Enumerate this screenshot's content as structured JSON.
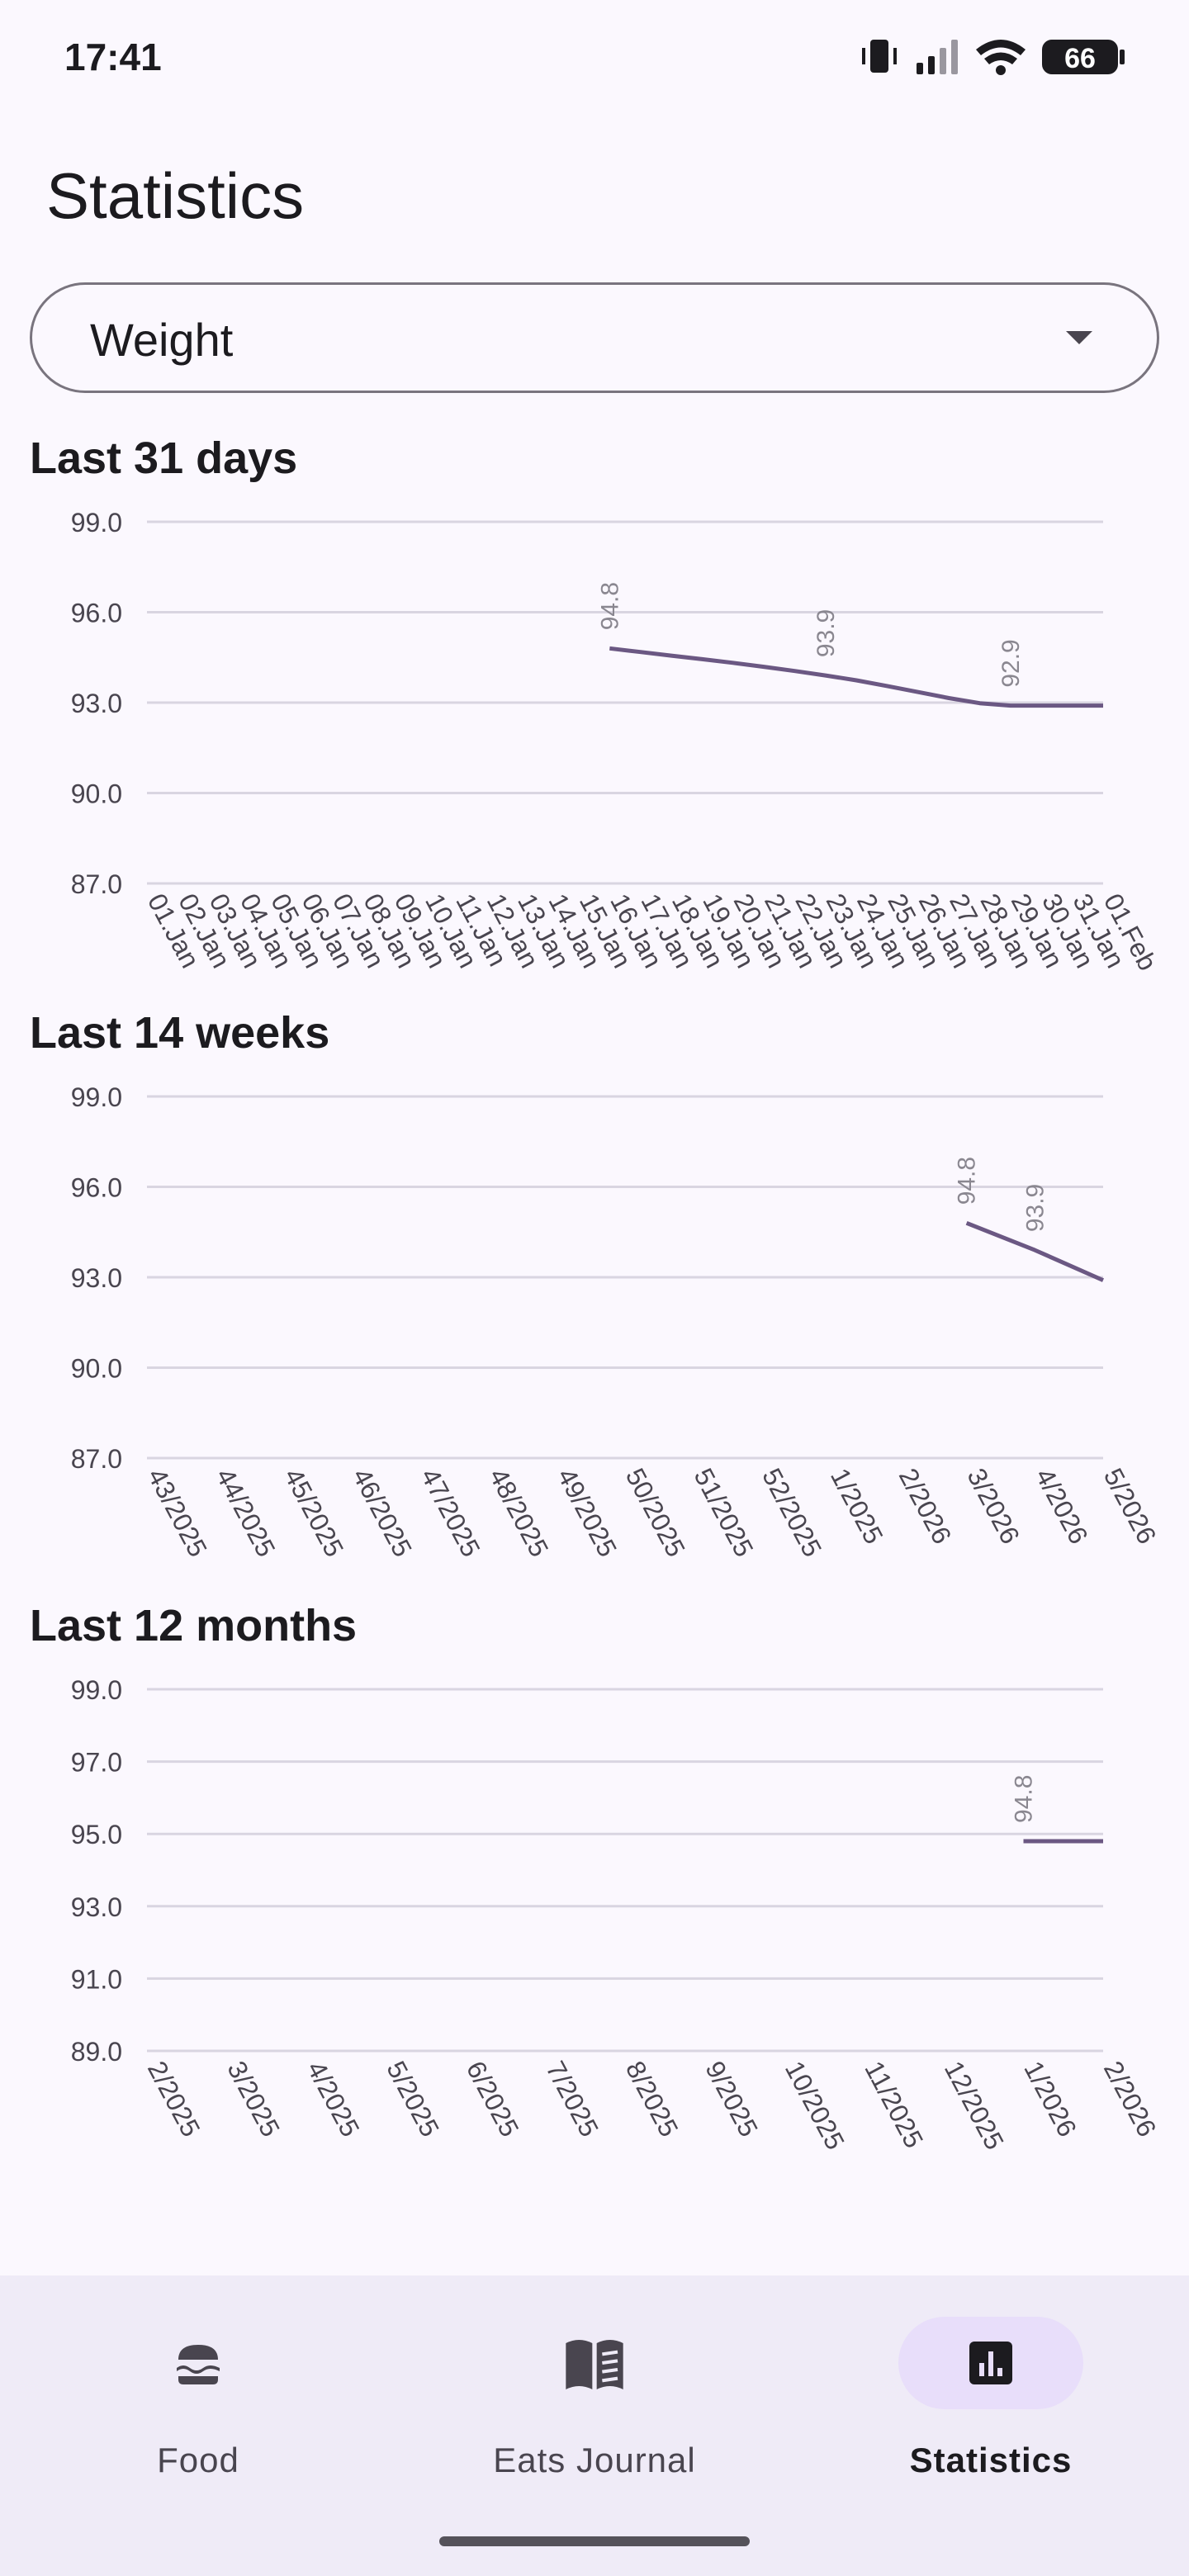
{
  "status_bar": {
    "time": "17:41",
    "battery": "66"
  },
  "page_title": "Statistics",
  "dropdown": {
    "value": "Weight"
  },
  "charts": [
    {
      "title": "Last 31 days",
      "chart_data": {
        "type": "line",
        "ylim": [
          87,
          99
        ],
        "yticks": [
          "99.0",
          "96.0",
          "93.0",
          "90.0",
          "87.0"
        ],
        "categories": [
          "01.Jan",
          "02.Jan",
          "03.Jan",
          "04.Jan",
          "05.Jan",
          "06.Jan",
          "07.Jan",
          "08.Jan",
          "09.Jan",
          "10.Jan",
          "11.Jan",
          "12.Jan",
          "13.Jan",
          "14.Jan",
          "15.Jan",
          "16.Jan",
          "17.Jan",
          "18.Jan",
          "19.Jan",
          "20.Jan",
          "21.Jan",
          "22.Jan",
          "23.Jan",
          "24.Jan",
          "25.Jan",
          "26.Jan",
          "27.Jan",
          "28.Jan",
          "29.Jan",
          "30.Jan",
          "31.Jan",
          "01.Feb"
        ],
        "series": [
          {
            "values": [
              null,
              null,
              null,
              null,
              null,
              null,
              null,
              null,
              null,
              null,
              null,
              null,
              null,
              null,
              null,
              94.8,
              94.68,
              94.56,
              94.44,
              94.32,
              94.19,
              94.05,
              93.9,
              93.74,
              93.55,
              93.35,
              93.15,
              92.98,
              92.9,
              92.9,
              92.9,
              92.9
            ],
            "labels": [
              {
                "index": 15,
                "text": "94.8"
              },
              {
                "index": 22,
                "text": "93.9"
              },
              {
                "index": 28,
                "text": "92.9"
              }
            ]
          }
        ],
        "grid": true,
        "line_color": "#6b5883"
      }
    },
    {
      "title": "Last 14 weeks",
      "chart_data": {
        "type": "line",
        "ylim": [
          87,
          99
        ],
        "yticks": [
          "99.0",
          "96.0",
          "93.0",
          "90.0",
          "87.0"
        ],
        "categories": [
          "43/2025",
          "44/2025",
          "45/2025",
          "46/2025",
          "47/2025",
          "48/2025",
          "49/2025",
          "50/2025",
          "51/2025",
          "52/2025",
          "1/2025",
          "2/2026",
          "3/2026",
          "4/2026",
          "5/2026"
        ],
        "series": [
          {
            "values": [
              null,
              null,
              null,
              null,
              null,
              null,
              null,
              null,
              null,
              null,
              null,
              null,
              94.8,
              93.9,
              92.9
            ],
            "labels": [
              {
                "index": 12,
                "text": "94.8"
              },
              {
                "index": 13,
                "text": "93.9"
              }
            ]
          }
        ],
        "grid": true,
        "line_color": "#6b5883"
      }
    },
    {
      "title": "Last 12 months",
      "chart_data": {
        "type": "line",
        "ylim": [
          89,
          99
        ],
        "yticks": [
          "99.0",
          "97.0",
          "95.0",
          "93.0",
          "91.0",
          "89.0"
        ],
        "categories": [
          "2/2025",
          "3/2025",
          "4/2025",
          "5/2025",
          "6/2025",
          "7/2025",
          "8/2025",
          "9/2025",
          "10/2025",
          "11/2025",
          "12/2025",
          "1/2026",
          "2/2026"
        ],
        "series": [
          {
            "values": [
              null,
              null,
              null,
              null,
              null,
              null,
              null,
              null,
              null,
              null,
              null,
              94.8,
              94.8
            ],
            "labels": [
              {
                "index": 11,
                "text": "94.8"
              }
            ]
          }
        ],
        "grid": true,
        "line_color": "#6b5883"
      }
    }
  ],
  "nav": {
    "items": [
      {
        "label": "Food",
        "icon": "burger-icon",
        "active": false
      },
      {
        "label": "Eats Journal",
        "icon": "open-book-icon",
        "active": false
      },
      {
        "label": "Statistics",
        "icon": "bar-chart-icon",
        "active": true
      }
    ]
  }
}
